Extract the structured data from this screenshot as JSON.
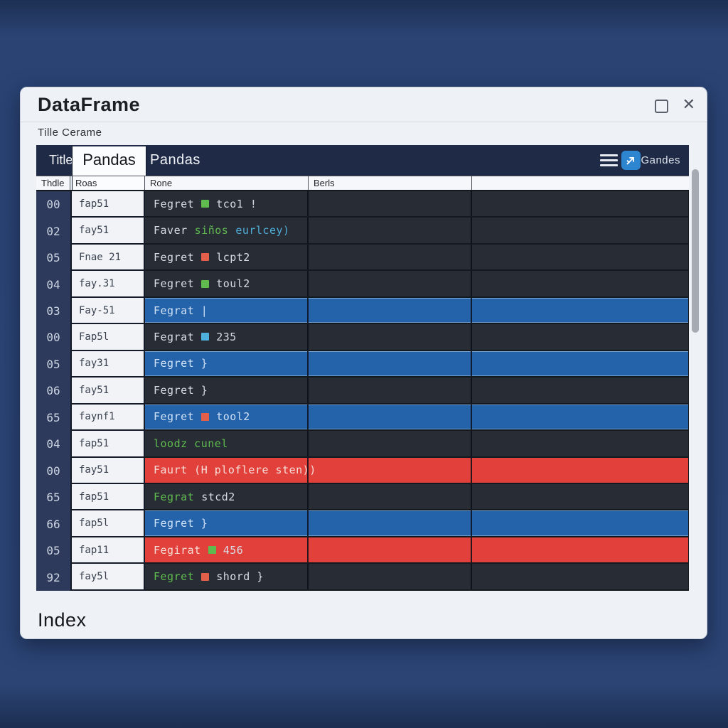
{
  "window": {
    "title": "DataFrame",
    "menu_label": "Tille Cerame",
    "footer_label": "Index",
    "controls": {
      "close": "✕"
    }
  },
  "header": {
    "left_tab": "Title",
    "active_tab": "Pandas",
    "title": "Pandas",
    "right_label": "Gandes",
    "icons": [
      "hamburger-menu-icon",
      "chart-arrow-icon"
    ]
  },
  "colors": {
    "light": "#d9dde5",
    "green": "#5fbb4e",
    "cyan": "#4fb0dc",
    "orange": "#e2604a",
    "pale_blue": "#cfe2f7",
    "pale_red": "#f6ddd8",
    "row_blue": "#2462aa",
    "row_red": "#e2413b",
    "icon_blue": "#2f86d0"
  },
  "table": {
    "column_headers": [
      "Thdle",
      "Roas",
      "Rone",
      "Berls",
      ""
    ],
    "rows": [
      {
        "index": "00",
        "key": "fap51",
        "highlight": "none",
        "segments": [
          {
            "text": "Fegret",
            "color": "light"
          },
          {
            "square": "green"
          },
          {
            "text": "tco1 !",
            "color": "light"
          }
        ]
      },
      {
        "index": "02",
        "key": "fay51",
        "highlight": "none",
        "segments": [
          {
            "text": "Faver",
            "color": "light"
          },
          {
            "text": "siños",
            "color": "green"
          },
          {
            "text": "eurlcey)",
            "color": "cyan"
          }
        ]
      },
      {
        "index": "05",
        "key": "Fnae 21",
        "highlight": "none",
        "segments": [
          {
            "text": "Fegret",
            "color": "light"
          },
          {
            "square": "orange"
          },
          {
            "text": "lcpt2",
            "color": "light"
          }
        ]
      },
      {
        "index": "04",
        "key": "fay.31",
        "highlight": "none",
        "segments": [
          {
            "text": "Fegret",
            "color": "light"
          },
          {
            "square": "green"
          },
          {
            "text": "toul2",
            "color": "light"
          }
        ]
      },
      {
        "index": "03",
        "key": "Fay-51",
        "highlight": "blue",
        "segments": [
          {
            "text": "Fegrat |",
            "color": "pale_blue"
          }
        ]
      },
      {
        "index": "00",
        "key": "Fap5l",
        "highlight": "none",
        "segments": [
          {
            "text": "Fegrat",
            "color": "light"
          },
          {
            "square": "cyan"
          },
          {
            "text": "235",
            "color": "light"
          }
        ]
      },
      {
        "index": "05",
        "key": "fay31",
        "highlight": "blue",
        "segments": [
          {
            "text": "Fegret }",
            "color": "pale_blue"
          }
        ]
      },
      {
        "index": "06",
        "key": "fay51",
        "highlight": "none",
        "segments": [
          {
            "text": "Fegret }",
            "color": "light"
          }
        ]
      },
      {
        "index": "65",
        "key": "faynf1",
        "highlight": "blue",
        "segments": [
          {
            "text": "Fegret",
            "color": "pale_blue"
          },
          {
            "square": "orange"
          },
          {
            "text": "tool2",
            "color": "pale_blue"
          }
        ]
      },
      {
        "index": "04",
        "key": "fap51",
        "highlight": "none",
        "segments": [
          {
            "text": "loodz cunel",
            "color": "green"
          }
        ]
      },
      {
        "index": "00",
        "key": "fay51",
        "highlight": "red",
        "segments": [
          {
            "text": "Faurt (H ploflere sten))",
            "color": "pale_red"
          }
        ]
      },
      {
        "index": "65",
        "key": "fap51",
        "highlight": "none",
        "segments": [
          {
            "text": "Fegrat",
            "color": "green"
          },
          {
            "text": "stcd2",
            "color": "light"
          }
        ]
      },
      {
        "index": "66",
        "key": "fap5l",
        "highlight": "blue",
        "segments": [
          {
            "text": "Fegret }",
            "color": "pale_blue"
          }
        ]
      },
      {
        "index": "05",
        "key": "fap11",
        "highlight": "red",
        "segments": [
          {
            "text": "Fegirat",
            "color": "pale_red"
          },
          {
            "square": "green"
          },
          {
            "text": "456",
            "color": "light"
          }
        ]
      },
      {
        "index": "92",
        "key": "fay5l",
        "highlight": "none",
        "segments": [
          {
            "text": "Fegret",
            "color": "green"
          },
          {
            "square": "orange"
          },
          {
            "text": "shord }",
            "color": "light"
          }
        ]
      }
    ]
  }
}
